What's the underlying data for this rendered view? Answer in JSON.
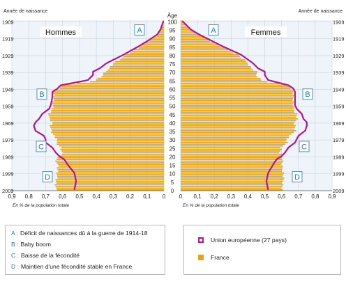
{
  "chart_data": {
    "type": "population-pyramid",
    "title": "",
    "panels": [
      {
        "side": "left",
        "label": "Hommes"
      },
      {
        "side": "right",
        "label": "Femmes"
      }
    ],
    "center_axis": {
      "label": "Âge",
      "ticks": [
        0,
        5,
        10,
        15,
        20,
        25,
        30,
        35,
        40,
        45,
        50,
        55,
        60,
        65,
        70,
        75,
        80,
        85,
        90,
        95,
        100
      ]
    },
    "year_axis": {
      "label": "Année de naissance",
      "ticks": [
        "1909",
        "1919",
        "1929",
        "1939",
        "1949",
        "1959",
        "1969",
        "1979",
        "1989",
        "1999",
        "2009"
      ],
      "tick_ages": [
        100,
        90,
        80,
        70,
        60,
        50,
        40,
        30,
        20,
        10,
        0
      ]
    },
    "x_axis": {
      "label": "En % de la population totale",
      "ticks": [
        "0,9",
        "0,8",
        "0,7",
        "0,6",
        "0,5",
        "0,4",
        "0,3",
        "0,2",
        "0,1",
        "0"
      ],
      "tick_values": [
        0.9,
        0.8,
        0.7,
        0.6,
        0.5,
        0.4,
        0.3,
        0.2,
        0.1,
        0
      ],
      "range": [
        0,
        0.9
      ]
    },
    "series": [
      {
        "name": "France",
        "color": "#e8a317"
      },
      {
        "name": "Union européenne (27 pays)",
        "color": "#b4148c"
      }
    ],
    "data_keypoints": {
      "ages": [
        0,
        5,
        10,
        15,
        18,
        20,
        22,
        25,
        28,
        30,
        32,
        35,
        38,
        40,
        42,
        45,
        48,
        50,
        55,
        58,
        60,
        62,
        64,
        65,
        68,
        70,
        72,
        75,
        80,
        85,
        88,
        90,
        92,
        95,
        100
      ],
      "hommes_france": [
        0.64,
        0.64,
        0.63,
        0.63,
        0.64,
        0.62,
        0.6,
        0.61,
        0.64,
        0.63,
        0.65,
        0.67,
        0.67,
        0.66,
        0.68,
        0.68,
        0.66,
        0.66,
        0.65,
        0.66,
        0.62,
        0.6,
        0.44,
        0.4,
        0.36,
        0.35,
        0.32,
        0.3,
        0.22,
        0.14,
        0.09,
        0.06,
        0.04,
        0.02,
        0.003
      ],
      "hommes_ue": [
        0.53,
        0.52,
        0.53,
        0.57,
        0.59,
        0.62,
        0.64,
        0.66,
        0.7,
        0.7,
        0.71,
        0.76,
        0.77,
        0.76,
        0.74,
        0.72,
        0.68,
        0.67,
        0.66,
        0.66,
        0.63,
        0.61,
        0.5,
        0.45,
        0.42,
        0.42,
        0.38,
        0.34,
        0.24,
        0.15,
        0.1,
        0.07,
        0.04,
        0.02,
        0.003
      ],
      "femmes_france": [
        0.6,
        0.61,
        0.61,
        0.6,
        0.61,
        0.6,
        0.59,
        0.6,
        0.63,
        0.63,
        0.65,
        0.68,
        0.68,
        0.68,
        0.69,
        0.69,
        0.67,
        0.67,
        0.67,
        0.67,
        0.66,
        0.64,
        0.52,
        0.48,
        0.45,
        0.45,
        0.42,
        0.4,
        0.34,
        0.24,
        0.18,
        0.15,
        0.11,
        0.06,
        0.01
      ],
      "femmes_ue": [
        0.52,
        0.51,
        0.52,
        0.55,
        0.57,
        0.6,
        0.62,
        0.64,
        0.68,
        0.69,
        0.7,
        0.74,
        0.75,
        0.75,
        0.73,
        0.72,
        0.69,
        0.68,
        0.68,
        0.68,
        0.67,
        0.64,
        0.56,
        0.52,
        0.5,
        0.5,
        0.46,
        0.43,
        0.36,
        0.25,
        0.19,
        0.15,
        0.11,
        0.06,
        0.01
      ]
    },
    "annotations": [
      {
        "key": "A",
        "age": 95,
        "panels": [
          "left",
          "right"
        ]
      },
      {
        "key": "B",
        "age": 57,
        "panels": [
          "left",
          "right"
        ]
      },
      {
        "key": "C",
        "age": 26,
        "panels": [
          "left",
          "right"
        ]
      },
      {
        "key": "D",
        "age": 8,
        "panels": [
          "left",
          "right"
        ]
      }
    ],
    "grid": true,
    "legend_position": "bottom"
  },
  "legend": {
    "notes": [
      {
        "key": "A :",
        "text": "Déficit de naissances dû à la guerre de 1914-18"
      },
      {
        "key": "B :",
        "text": "Baby boom"
      },
      {
        "key": "C :",
        "text": "Baisse de la fécondité"
      },
      {
        "key": "D :",
        "text": "Maintien d'une fécondité stable en France"
      }
    ],
    "series": [
      {
        "label": "Union européenne (27 pays)"
      },
      {
        "label": "France"
      }
    ]
  }
}
